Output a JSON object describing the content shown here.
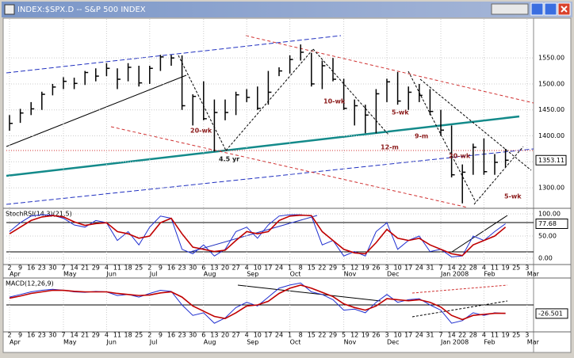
{
  "chart_data": [
    {
      "type": "ohlc",
      "title": "INDEX:$SPX.D -- S&P 500 INDEX",
      "grid": true,
      "color": "#000000",
      "categories": [
        "2",
        "9",
        "16",
        "23",
        "30",
        "7",
        "14",
        "21",
        "29",
        "4",
        "11",
        "18",
        "25",
        "2",
        "9",
        "16",
        "23",
        "30",
        "6",
        "13",
        "20",
        "27",
        "4",
        "10",
        "17",
        "24",
        "1",
        "8",
        "15",
        "22",
        "29",
        "5",
        "12",
        "19",
        "26",
        "3",
        "10",
        "17",
        "24",
        "31",
        "7",
        "14",
        "22",
        "28",
        "4",
        "11",
        "19",
        "25",
        "3"
      ],
      "months": [
        "Apr",
        null,
        null,
        null,
        null,
        "May",
        null,
        null,
        null,
        "Jun",
        null,
        null,
        null,
        "Jul",
        null,
        null,
        null,
        null,
        "Aug",
        null,
        null,
        null,
        "Sep",
        null,
        null,
        null,
        "Oct",
        null,
        null,
        null,
        null,
        "Nov",
        null,
        null,
        null,
        "Dec",
        null,
        null,
        null,
        null,
        "Jan 2008",
        null,
        null,
        null,
        "Feb",
        null,
        null,
        null,
        "Mar"
      ],
      "high": [
        1440,
        1452,
        1465,
        1485,
        1500,
        1513,
        1512,
        1525,
        1530,
        1540,
        1530,
        1540,
        1535,
        1535,
        1556,
        1556,
        1555,
        1480,
        1505,
        1470,
        1470,
        1485,
        1490,
        1495,
        1525,
        1532,
        1555,
        1576,
        1560,
        1545,
        1550,
        1510,
        1470,
        1460,
        1490,
        1510,
        1523,
        1495,
        1500,
        1490,
        1450,
        1420,
        1345,
        1385,
        1395,
        1365,
        1375,
        null,
        null
      ],
      "low": [
        1410,
        1425,
        1440,
        1450,
        1478,
        1490,
        1490,
        1498,
        1505,
        1515,
        1490,
        1505,
        1495,
        1500,
        1525,
        1535,
        1450,
        1420,
        1430,
        1370,
        1430,
        1440,
        1465,
        1450,
        1460,
        1515,
        1520,
        1545,
        1495,
        1490,
        1505,
        1450,
        1420,
        1405,
        1405,
        1465,
        1460,
        1450,
        1465,
        1440,
        1400,
        1320,
        1270,
        1325,
        1325,
        1325,
        1340,
        null,
        null
      ],
      "close": [
        1424,
        1444,
        1452,
        1480,
        1494,
        1505,
        1501,
        1522,
        1515,
        1530,
        1509,
        1532,
        1502,
        1530,
        1552,
        1550,
        1458,
        1476,
        1433,
        1445,
        1445,
        1479,
        1474,
        1453,
        1484,
        1525,
        1547,
        1561,
        1500,
        1535,
        1509,
        1453,
        1458,
        1440,
        1481,
        1504,
        1467,
        1484,
        1478,
        1447,
        1411,
        1325,
        1330,
        1378,
        1331,
        1349,
        1353.11,
        null,
        null
      ],
      "ylim": [
        1262,
        1625
      ],
      "yticks": [
        {
          "value": 1300,
          "label": "1300.00"
        },
        {
          "value": 1350,
          "label": "1350.00"
        },
        {
          "value": 1400,
          "label": "1400.00"
        },
        {
          "value": 1450,
          "label": "1450.00"
        },
        {
          "value": 1500,
          "label": "1500.00"
        },
        {
          "value": 1550,
          "label": "1550.00"
        }
      ],
      "annotations": [
        "20-wk",
        "4.5 yr",
        "10-wk",
        "5-wk",
        "12-m",
        "9-m",
        "20-wk",
        "5-wk"
      ]
    },
    {
      "type": "line",
      "title": "StochRSI(14,3)(21,5)",
      "grid": true,
      "series": [
        {
          "color": "#1f2fd0",
          "values": [
            60,
            80,
            95,
            98,
            97,
            90,
            75,
            70,
            85,
            80,
            40,
            60,
            30,
            70,
            95,
            90,
            20,
            10,
            30,
            5,
            20,
            60,
            70,
            45,
            75,
            95,
            98,
            98,
            95,
            30,
            40,
            5,
            15,
            5,
            60,
            80,
            20,
            40,
            50,
            15,
            20,
            3,
            5,
            50,
            40,
            60,
            77.68,
            null,
            null
          ]
        },
        {
          "color": "#c00000",
          "values": [
            55,
            70,
            85,
            93,
            96,
            93,
            82,
            74,
            78,
            80,
            60,
            55,
            45,
            50,
            80,
            90,
            55,
            25,
            20,
            15,
            18,
            40,
            60,
            55,
            60,
            85,
            95,
            97,
            96,
            60,
            40,
            20,
            12,
            10,
            35,
            65,
            45,
            40,
            45,
            30,
            20,
            10,
            6,
            30,
            40,
            50,
            70,
            null,
            null
          ]
        }
      ],
      "ylim": [
        -12.5,
        110.7
      ],
      "yticks": [
        {
          "value": 0,
          "label": "0.00"
        },
        {
          "value": 50,
          "label": "50.00"
        },
        {
          "value": 100,
          "label": "100.00"
        }
      ]
    },
    {
      "type": "line",
      "title": "MACD(12,26,9)",
      "grid": true,
      "series": [
        {
          "color": "#1f2fd0",
          "values": [
            5,
            10,
            15,
            18,
            20,
            18,
            15,
            14,
            16,
            15,
            8,
            10,
            5,
            12,
            18,
            16,
            -10,
            -30,
            -25,
            -45,
            -35,
            -15,
            -5,
            -12,
            5,
            22,
            28,
            32,
            15,
            10,
            0,
            -20,
            -18,
            -25,
            -5,
            10,
            -5,
            0,
            2,
            -10,
            -20,
            -45,
            -40,
            -25,
            -30,
            -25,
            -26.501,
            null,
            null
          ]
        },
        {
          "color": "#c00000",
          "values": [
            3,
            7,
            12,
            15,
            18,
            18,
            16,
            15,
            15,
            15,
            12,
            10,
            8,
            9,
            13,
            15,
            5,
            -12,
            -22,
            -32,
            -36,
            -25,
            -12,
            -10,
            -3,
            12,
            22,
            28,
            22,
            14,
            6,
            -8,
            -15,
            -20,
            -12,
            2,
            0,
            -2,
            0,
            -5,
            -14,
            -30,
            -38,
            -30,
            -28,
            -26,
            -26,
            null,
            null
          ]
        }
      ],
      "ylim": [
        -60,
        40
      ]
    }
  ]
}
